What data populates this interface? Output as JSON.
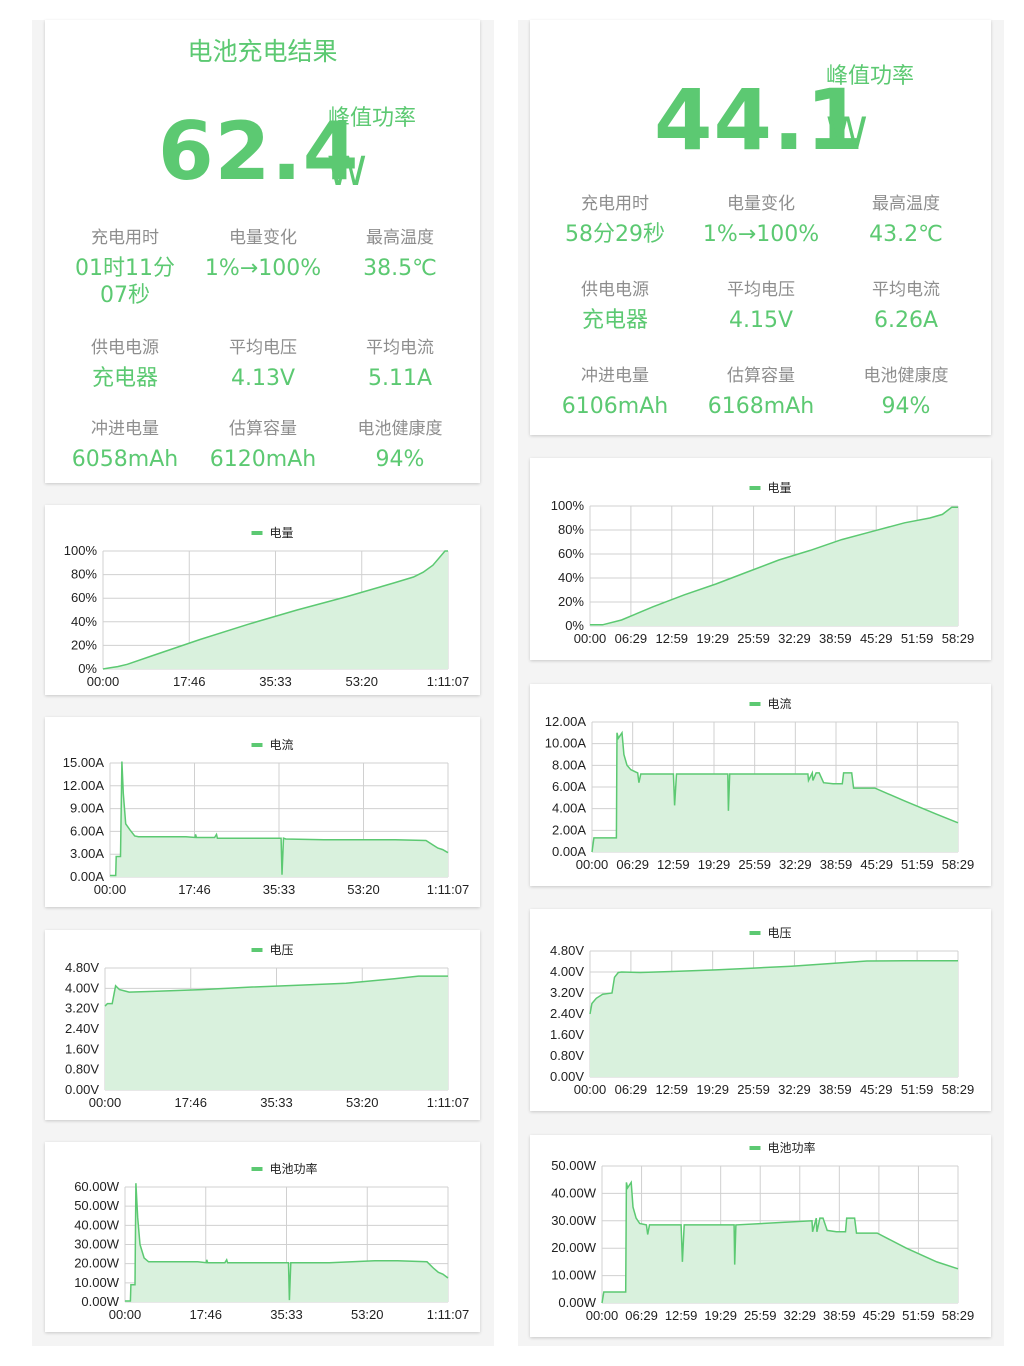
{
  "left": {
    "summary": {
      "title": "电池充电结果",
      "peak_power_label": "峰值功率",
      "peak_power_value": "62.4",
      "peak_power_unit": "W",
      "stats": [
        {
          "label": "充电用时",
          "value": "01时11分07秒"
        },
        {
          "label": "电量变化",
          "value": "1%→100%"
        },
        {
          "label": "最高温度",
          "value": "38.5℃"
        },
        {
          "label": "供电电源",
          "value": "充电器"
        },
        {
          "label": "平均电压",
          "value": "4.13V"
        },
        {
          "label": "平均电流",
          "value": "5.11A"
        },
        {
          "label": "冲进电量",
          "value": "6058mAh"
        },
        {
          "label": "估算容量",
          "value": "6120mAh"
        },
        {
          "label": "电池健康度",
          "value": "94%"
        }
      ]
    }
  },
  "right": {
    "summary": {
      "peak_power_label": "峰值功率",
      "peak_power_value": "44.1",
      "peak_power_unit": "W",
      "stats": [
        {
          "label": "充电用时",
          "value": "58分29秒"
        },
        {
          "label": "电量变化",
          "value": "1%→100%"
        },
        {
          "label": "最高温度",
          "value": "43.2℃"
        },
        {
          "label": "供电电源",
          "value": "充电器"
        },
        {
          "label": "平均电压",
          "value": "4.15V"
        },
        {
          "label": "平均电流",
          "value": "6.26A"
        },
        {
          "label": "冲进电量",
          "value": "6106mAh"
        },
        {
          "label": "估算容量",
          "value": "6168mAh"
        },
        {
          "label": "电池健康度",
          "value": "94%"
        }
      ]
    }
  },
  "colors": {
    "accent": "#5cc972",
    "fill": "#d9f1dd",
    "grid": "#d0d0d0",
    "label": "#8e8e8e"
  },
  "chart_data": [
    {
      "id": "L-battery",
      "type": "area",
      "legend": "电量",
      "x_ticks": [
        "00:00",
        "17:46",
        "35:33",
        "53:20",
        "1:11:07"
      ],
      "y_ticks": [
        "0%",
        "20%",
        "40%",
        "60%",
        "80%",
        "100%"
      ],
      "ylim": [
        0,
        100
      ],
      "xlim": [
        0,
        71.12
      ],
      "x": [
        0,
        1.5,
        3,
        5,
        10,
        20,
        30,
        40,
        50,
        60,
        64,
        66,
        68,
        70.5,
        71.12
      ],
      "y": [
        0,
        1,
        2,
        4,
        11,
        25,
        38,
        50,
        61,
        73,
        78,
        82,
        88,
        100,
        100
      ]
    },
    {
      "id": "L-current",
      "type": "area",
      "legend": "电流",
      "x_ticks": [
        "00:00",
        "17:46",
        "35:33",
        "53:20",
        "1:11:07"
      ],
      "y_ticks": [
        "0.00A",
        "3.00A",
        "6.00A",
        "9.00A",
        "12.00A",
        "15.00A"
      ],
      "ylim": [
        0,
        15
      ],
      "xlim": [
        0,
        71.12
      ],
      "x": [
        0,
        1.2,
        1.3,
        2.2,
        2.5,
        2.8,
        3.3,
        4.2,
        5.2,
        6,
        16,
        17.9,
        18,
        18.2,
        22,
        22.4,
        22.6,
        30,
        36,
        36.2,
        36.5,
        37,
        45,
        55,
        60,
        66.5,
        68,
        69,
        70,
        71.12
      ],
      "y": [
        0.2,
        0.2,
        2.7,
        2.7,
        15.2,
        11,
        7,
        6.2,
        5.4,
        5.3,
        5.3,
        5.2,
        5.6,
        5.2,
        5.2,
        5.6,
        5.1,
        5.1,
        5.1,
        0.3,
        5.1,
        5,
        4.9,
        4.9,
        4.9,
        4.8,
        4.2,
        3.8,
        3.6,
        3.2
      ]
    },
    {
      "id": "L-voltage",
      "type": "area",
      "legend": "电压",
      "x_ticks": [
        "00:00",
        "17:46",
        "35:33",
        "53:20",
        "1:11:07"
      ],
      "y_ticks": [
        "0.00V",
        "0.80V",
        "1.60V",
        "2.40V",
        "3.20V",
        "4.00V",
        "4.80V"
      ],
      "ylim": [
        0,
        4.8
      ],
      "xlim": [
        0,
        71.12
      ],
      "x": [
        0,
        0.5,
        1.5,
        2.2,
        3,
        5,
        10,
        20,
        30,
        40,
        50,
        60,
        65,
        71.12
      ],
      "y": [
        3.3,
        3.4,
        3.4,
        4.1,
        3.95,
        3.85,
        3.88,
        3.95,
        4.05,
        4.12,
        4.2,
        4.38,
        4.48,
        4.48
      ]
    },
    {
      "id": "L-power",
      "type": "area",
      "legend": "电池功率",
      "x_ticks": [
        "00:00",
        "17:46",
        "35:33",
        "53:20",
        "1:11:07"
      ],
      "y_ticks": [
        "0.00W",
        "10.00W",
        "20.00W",
        "30.00W",
        "40.00W",
        "50.00W",
        "60.00W"
      ],
      "ylim": [
        0,
        60
      ],
      "xlim": [
        0,
        71.12
      ],
      "x": [
        0,
        1.2,
        1.3,
        2.2,
        2.4,
        2.8,
        3.3,
        4.2,
        5.2,
        6,
        16,
        17.9,
        18,
        18.2,
        22,
        22.4,
        22.6,
        30,
        36,
        36.2,
        36.5,
        37,
        45,
        55,
        60,
        66.5,
        68,
        69,
        70,
        71.12
      ],
      "y": [
        0.5,
        0.5,
        9,
        9,
        62,
        44,
        30,
        23,
        21,
        21,
        21,
        20.5,
        22,
        20.5,
        20.5,
        22,
        20.5,
        20.5,
        20.5,
        1,
        20.5,
        20.5,
        20.5,
        21.5,
        21.5,
        21,
        17.5,
        15.5,
        14.5,
        12.5
      ]
    },
    {
      "id": "R-battery",
      "type": "area",
      "legend": "电量",
      "x_ticks": [
        "00:00",
        "06:29",
        "12:59",
        "19:29",
        "25:59",
        "32:29",
        "38:59",
        "45:29",
        "51:59",
        "58:29"
      ],
      "y_ticks": [
        "0%",
        "20%",
        "40%",
        "60%",
        "80%",
        "100%"
      ],
      "ylim": [
        0,
        100
      ],
      "xlim": [
        0,
        58.48
      ],
      "x": [
        0,
        2,
        5,
        10,
        15,
        20,
        25,
        30,
        35,
        40,
        45,
        50,
        54,
        56,
        57.5,
        58.48
      ],
      "y": [
        1,
        1,
        5,
        16,
        26,
        35,
        45,
        55,
        63,
        72,
        79,
        86,
        90,
        93,
        99,
        99
      ]
    },
    {
      "id": "R-current",
      "type": "area",
      "legend": "电流",
      "x_ticks": [
        "00:00",
        "06:29",
        "12:59",
        "19:29",
        "25:59",
        "32:29",
        "38:59",
        "45:29",
        "51:59",
        "58:29"
      ],
      "y_ticks": [
        "0.00A",
        "2.00A",
        "4.00A",
        "6.00A",
        "8.00A",
        "10.00A",
        "12.00A"
      ],
      "ylim": [
        0,
        12
      ],
      "xlim": [
        0,
        58.48
      ],
      "x": [
        0,
        0.3,
        0.5,
        3.9,
        4,
        4.2,
        4.8,
        5.1,
        5.6,
        6.2,
        7.3,
        7.5,
        7.8,
        13,
        13.2,
        13.5,
        21.7,
        21.8,
        22,
        34.5,
        34.6,
        35.2,
        35.3,
        35.8,
        36.3,
        37,
        38.5,
        40,
        40.2,
        41.5,
        41.8,
        45,
        45.2,
        50,
        55,
        58.48
      ],
      "y": [
        0,
        1.3,
        1.3,
        1.3,
        11,
        10.5,
        11,
        9,
        8,
        7.6,
        7.3,
        6.4,
        7.2,
        7.2,
        4.3,
        7.2,
        7.2,
        3.8,
        7.2,
        7.2,
        6.6,
        7.3,
        6.6,
        7.3,
        7.3,
        6.4,
        6.3,
        6.3,
        7.3,
        7.3,
        5.9,
        5.9,
        5.9,
        4.7,
        3.5,
        2.7
      ]
    },
    {
      "id": "R-voltage",
      "type": "area",
      "legend": "电压",
      "x_ticks": [
        "00:00",
        "06:29",
        "12:59",
        "19:29",
        "25:59",
        "32:29",
        "38:59",
        "45:29",
        "51:59",
        "58:29"
      ],
      "y_ticks": [
        "0.00V",
        "0.80V",
        "1.60V",
        "2.40V",
        "3.20V",
        "4.00V",
        "4.80V"
      ],
      "ylim": [
        0,
        4.8
      ],
      "xlim": [
        0,
        58.48
      ],
      "x": [
        0,
        0.3,
        1,
        2,
        3.5,
        3.9,
        4.5,
        5,
        8,
        13,
        20,
        26,
        32,
        38,
        44,
        50,
        58.48
      ],
      "y": [
        2.4,
        2.8,
        3.0,
        3.15,
        3.2,
        3.8,
        3.98,
        4.0,
        3.98,
        4.02,
        4.08,
        4.15,
        4.22,
        4.32,
        4.42,
        4.43,
        4.43
      ]
    },
    {
      "id": "R-power",
      "type": "area",
      "legend": "电池功率",
      "x_ticks": [
        "00:00",
        "06:29",
        "12:59",
        "19:29",
        "25:59",
        "32:29",
        "38:59",
        "45:29",
        "51:59",
        "58:29"
      ],
      "y_ticks": [
        "0.00W",
        "10.00W",
        "20.00W",
        "30.00W",
        "40.00W",
        "50.00W"
      ],
      "ylim": [
        0,
        50
      ],
      "xlim": [
        0,
        58.48
      ],
      "x": [
        0,
        0.3,
        0.5,
        3.9,
        4,
        4.2,
        4.8,
        5.1,
        5.6,
        6.2,
        7.3,
        7.5,
        7.8,
        13,
        13.2,
        13.5,
        21.7,
        21.8,
        22,
        34.5,
        34.6,
        35.2,
        35.3,
        35.8,
        36.3,
        37,
        38.5,
        40,
        40.2,
        41.5,
        41.8,
        45,
        45.2,
        50,
        55,
        58.48
      ],
      "y": [
        0,
        4,
        4,
        4,
        44,
        42,
        44,
        35,
        31,
        29,
        28.5,
        25,
        28.5,
        28.5,
        15,
        28.5,
        28.5,
        14,
        28.5,
        30,
        26,
        31,
        26,
        31,
        31,
        26.5,
        26,
        26,
        31,
        31,
        25.5,
        25.5,
        25.5,
        20,
        15,
        12.5
      ]
    }
  ]
}
